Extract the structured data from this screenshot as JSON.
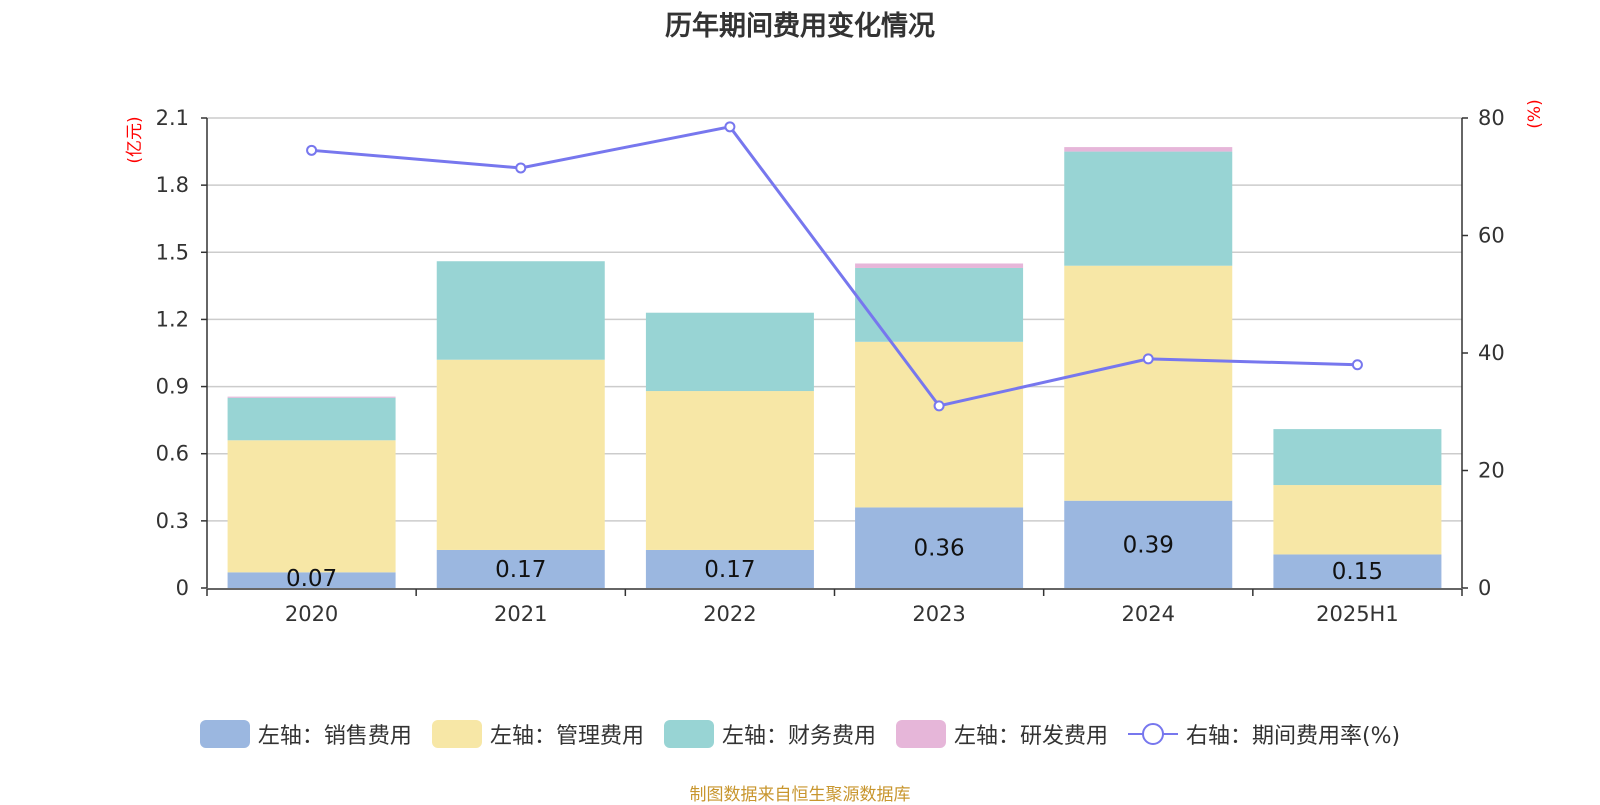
{
  "title": "历年期间费用变化情况",
  "source_note": "制图数据来自恒生聚源数据库",
  "colors": {
    "sales": "#9bb7e0",
    "admin": "#f7e7a6",
    "finance": "#98d4d4",
    "rnd": "#e6b6d9",
    "rate_line": "#7777ee",
    "unit_text": "#ff0000",
    "grid": "#cccccc"
  },
  "chart_data": {
    "type": "bar",
    "stacked": true,
    "categories": [
      "2020",
      "2021",
      "2022",
      "2023",
      "2024",
      "2025H1"
    ],
    "left_axis": {
      "unit": "(亿元)",
      "ylim": [
        0,
        2.1
      ],
      "ticks": [
        "0",
        "0.3",
        "0.6",
        "0.9",
        "1.2",
        "1.5",
        "1.8",
        "2.1"
      ]
    },
    "right_axis": {
      "unit": "(%)",
      "ylim": [
        0,
        80
      ],
      "ticks": [
        "0",
        "20",
        "40",
        "60",
        "80"
      ]
    },
    "grid": true,
    "legend_position": "bottom",
    "series": [
      {
        "name": "左轴：销售费用",
        "key": "sales",
        "axis": "left",
        "values": [
          0.07,
          0.17,
          0.17,
          0.36,
          0.39,
          0.15
        ],
        "labels": [
          "0.07",
          "0.17",
          "0.17",
          "0.36",
          "0.39",
          "0.15"
        ]
      },
      {
        "name": "左轴：管理费用",
        "key": "admin",
        "axis": "left",
        "values": [
          0.59,
          0.85,
          0.71,
          0.74,
          1.05,
          0.31
        ]
      },
      {
        "name": "左轴：财务费用",
        "key": "finance",
        "axis": "left",
        "values": [
          0.19,
          0.44,
          0.35,
          0.33,
          0.51,
          0.25
        ]
      },
      {
        "name": "左轴：研发费用",
        "key": "rnd",
        "axis": "left",
        "values": [
          0.005,
          0.0,
          0.0,
          0.02,
          0.02,
          0.0
        ]
      },
      {
        "name": "右轴：期间费用率(%)",
        "key": "rate",
        "axis": "right",
        "type": "line",
        "values": [
          74.5,
          71.5,
          78.5,
          31.0,
          39.0,
          38.0
        ]
      }
    ]
  }
}
